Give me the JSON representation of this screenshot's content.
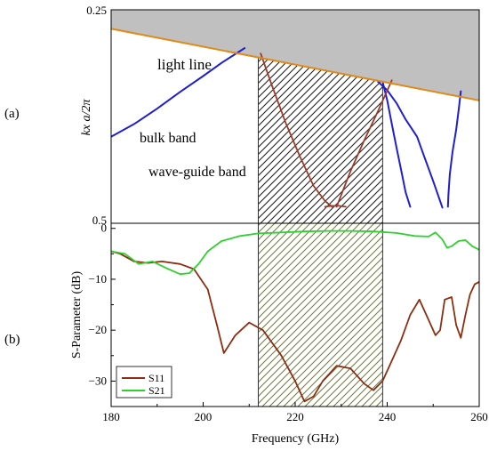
{
  "panel_labels": {
    "a": "(a)",
    "b": "(b)"
  },
  "colors": {
    "light_cone": "#c0c0c0",
    "light_line": "#e08a1c",
    "bulk": "#1f1fcf",
    "waveguide": "#9b3b2a",
    "s11": "#8b2e12",
    "s21": "#2fd12f",
    "hatch_dispersion": "#222222",
    "hatch_sparam": "#6b7f2a"
  },
  "chart_data": [
    {
      "type": "line",
      "panel": "(a)",
      "ylabel": "kx a/2π",
      "ylim": [
        0.25,
        0.5
      ],
      "y_tick_labels": [
        "0.25",
        "0.5"
      ],
      "xlim": [
        180,
        260
      ],
      "annotations": {
        "light_line": "light line",
        "bulk_band": "bulk band",
        "waveguide_band": "wave-guide band"
      },
      "light_line": {
        "x": [
          180,
          260
        ],
        "y": [
          0.2722,
          0.3562
        ]
      },
      "highlight_band": {
        "x_from": 212,
        "x_to": 239,
        "style": "hatched"
      },
      "series": [
        {
          "type": "bulk",
          "x": [
            180,
            185,
            190,
            195,
            200,
            204,
            209
          ],
          "y": [
            0.3986,
            0.3838,
            0.3657,
            0.3461,
            0.3276,
            0.3122,
            0.2949
          ]
        },
        {
          "type": "bulk",
          "x": [
            238,
            240,
            242,
            244,
            246.5,
            248,
            250,
            252
          ],
          "y": [
            0.3342,
            0.3442,
            0.3592,
            0.3783,
            0.3986,
            0.4211,
            0.4508,
            0.4817
          ]
        },
        {
          "type": "bulk",
          "x": [
            239,
            240,
            241,
            242,
            243,
            244,
            245
          ],
          "y": [
            0.3342,
            0.3558,
            0.3837,
            0.411,
            0.4368,
            0.4636,
            0.4806
          ]
        },
        {
          "type": "bulk",
          "x": [
            256,
            255.6,
            255,
            254.2,
            253.6,
            253.3,
            253.2
          ],
          "y": [
            0.3454,
            0.3646,
            0.3903,
            0.4163,
            0.4428,
            0.4677,
            0.4806
          ]
        },
        {
          "type": "waveguide",
          "x": [
            212.5,
            215,
            218,
            221,
            224,
            226.5,
            228
          ],
          "y": [
            0.3012,
            0.3394,
            0.3831,
            0.4215,
            0.4562,
            0.474,
            0.4806
          ]
        },
        {
          "type": "waveguide",
          "x": [
            229,
            232,
            235,
            238,
            241
          ],
          "y": [
            0.4806,
            0.4394,
            0.403,
            0.3688,
            0.3326
          ]
        },
        {
          "type": "waveguide",
          "x": [
            226.5,
            228,
            229.5,
            231
          ],
          "y": [
            0.4806,
            0.4796,
            0.4796,
            0.4806
          ]
        }
      ]
    },
    {
      "type": "line",
      "panel": "(b)",
      "xlabel": "Frequency (GHz)",
      "ylabel": "S-Parameter (dB)",
      "xlim": [
        180,
        260
      ],
      "ylim": [
        -35,
        1
      ],
      "x_ticks": [
        180,
        200,
        220,
        240,
        260
      ],
      "y_ticks": [
        0,
        -10,
        -20,
        -30
      ],
      "y_tick_labels": [
        "0",
        "−10",
        "−20",
        "−30"
      ],
      "legend": "bottom-left",
      "highlight_band": {
        "x_from": 212,
        "x_to": 239,
        "style": "hatched"
      },
      "series": [
        {
          "name": "S11",
          "x": [
            180,
            182,
            185,
            188,
            191,
            195,
            198,
            201,
            203,
            204.5,
            207,
            210,
            213,
            217,
            220,
            222,
            224,
            226,
            229,
            232,
            235,
            237,
            239,
            241,
            243,
            245,
            247,
            249,
            250.5,
            251.5,
            252.5,
            254,
            255,
            256,
            257,
            258,
            259,
            260
          ],
          "y": [
            -4.5,
            -5,
            -6.5,
            -6.8,
            -6.5,
            -7,
            -8,
            -12,
            -19,
            -24.5,
            -21,
            -18.5,
            -20,
            -25,
            -30,
            -34,
            -33,
            -30,
            -27,
            -27.5,
            -30.5,
            -31.8,
            -30,
            -26,
            -22,
            -17,
            -14,
            -18,
            -21,
            -20,
            -14,
            -13.5,
            -19,
            -21.5,
            -17,
            -13,
            -11,
            -10.5
          ]
        },
        {
          "name": "S21",
          "x": [
            180,
            183,
            186,
            189,
            192,
            195,
            197,
            199,
            201,
            204,
            208,
            212,
            217,
            222,
            227,
            232,
            237,
            242,
            246,
            249,
            250.5,
            252,
            253,
            254,
            255.5,
            257,
            258.5,
            260
          ],
          "y": [
            -4.5,
            -5,
            -7,
            -6.5,
            -7.8,
            -9,
            -8.8,
            -7,
            -4.5,
            -2.5,
            -1.5,
            -1.0,
            -0.8,
            -0.6,
            -0.5,
            -0.5,
            -0.6,
            -0.9,
            -1.5,
            -1.6,
            -0.8,
            -2.2,
            -3.8,
            -3.5,
            -2.5,
            -2.3,
            -3.5,
            -4.2
          ]
        }
      ]
    }
  ]
}
